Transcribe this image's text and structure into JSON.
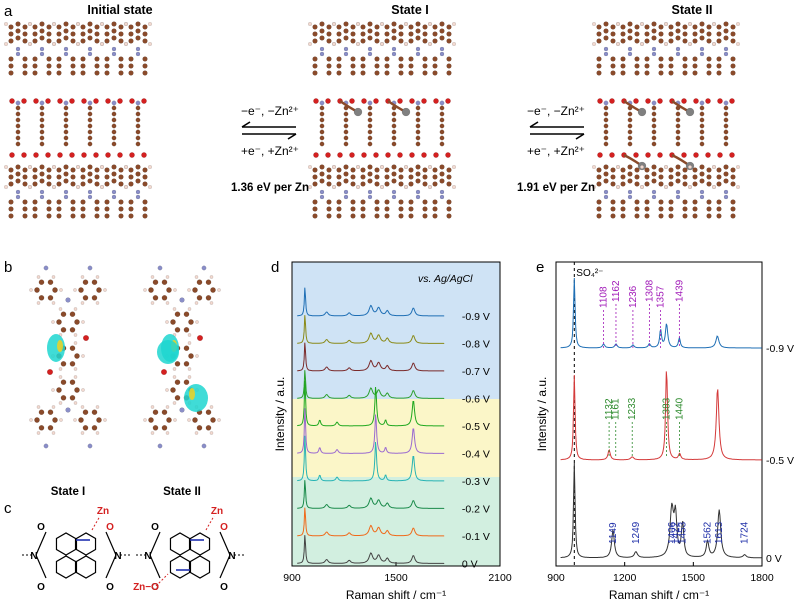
{
  "panel_letters": {
    "a": "a",
    "b": "b",
    "c": "c",
    "d": "d",
    "e": "e"
  },
  "panel_a": {
    "titles": [
      "Initial state",
      "State I",
      "State II"
    ],
    "arrow1": {
      "top": "−e⁻, −Zn²⁺",
      "bottom": "+e⁻, +Zn²⁺",
      "energy": "1.36 eV per Zn"
    },
    "arrow2": {
      "top": "−e⁻, −Zn²⁺",
      "bottom": "+e⁻, +Zn²⁺",
      "energy": "1.91 eV per Zn"
    }
  },
  "panel_b": {
    "labels": [
      "State I",
      "State II"
    ]
  },
  "panel_c": {
    "zn_label": "Zn",
    "zn_o_label": "Zn−O",
    "o_label": "O",
    "n_label": "N"
  },
  "colors": {
    "carbon": "#8a4a2a",
    "hydrogen": "#f2d9d0",
    "oxygen": "#d42020",
    "nitrogen": "#8a8ec8",
    "zinc": "#808080",
    "iso": "#1fd6d0",
    "band_blue": "#cfe3f5",
    "band_yellow": "#fbf6c8",
    "band_green": "#d2efe0",
    "peak_purple": "#a11ab8",
    "peak_green": "#2c8a2c",
    "peak_blue": "#1f2fa8"
  },
  "chart_data": [
    {
      "type": "line",
      "panel": "d",
      "xlabel": "Raman shift / cm⁻¹",
      "ylabel": "Intensity / a.u.",
      "x_ticks": [
        900,
        1500,
        2100
      ],
      "xlim": [
        900,
        2100
      ],
      "annotation": "vs. Ag/AgCl",
      "series": [
        {
          "name": "-0.9 V",
          "color": "#1f6fb5",
          "band": "blue"
        },
        {
          "name": "-0.8 V",
          "color": "#8a8a18",
          "band": "blue"
        },
        {
          "name": "-0.7 V",
          "color": "#7a2a2a",
          "band": "blue"
        },
        {
          "name": "-0.6 V",
          "color": "#2ca02c",
          "band": "blue"
        },
        {
          "name": "-0.5 V",
          "color": "#1fa81f",
          "band": "yellow"
        },
        {
          "name": "-0.4 V",
          "color": "#9a6ad0",
          "band": "yellow"
        },
        {
          "name": "-0.3 V",
          "color": "#28b4b4",
          "band": "yellow"
        },
        {
          "name": "-0.2 V",
          "color": "#1a8a4a",
          "band": "green"
        },
        {
          "name": "-0.1 V",
          "color": "#f06a1a",
          "band": "green"
        },
        {
          "name": "0 V",
          "color": "#444444",
          "band": "green"
        }
      ]
    },
    {
      "type": "line",
      "panel": "e",
      "xlabel": "Raman shift / cm⁻¹",
      "ylabel": "Intensity / a.u.",
      "x_ticks": [
        900,
        1200,
        1500,
        1800
      ],
      "xlim": [
        900,
        1800
      ],
      "reference_line": {
        "x": 980,
        "label": "SO₄²⁻"
      },
      "series": [
        {
          "name": "-0.9 V",
          "color": "#1f6fb5",
          "peaks": [
            1108,
            1162,
            1236,
            1308,
            1357,
            1439
          ],
          "peak_color": "#a11ab8"
        },
        {
          "name": "-0.5 V",
          "color": "#d43a3a",
          "peaks": [
            1132,
            1233,
            1383,
            1440,
            1161
          ],
          "peak_color": "#2c8a2c"
        },
        {
          "name": "0 V",
          "color": "#333333",
          "peaks": [
            1149,
            1249,
            1406,
            1422,
            1453,
            1562,
            1613,
            1724
          ],
          "peak_color": "#1f2fa8"
        }
      ]
    }
  ]
}
